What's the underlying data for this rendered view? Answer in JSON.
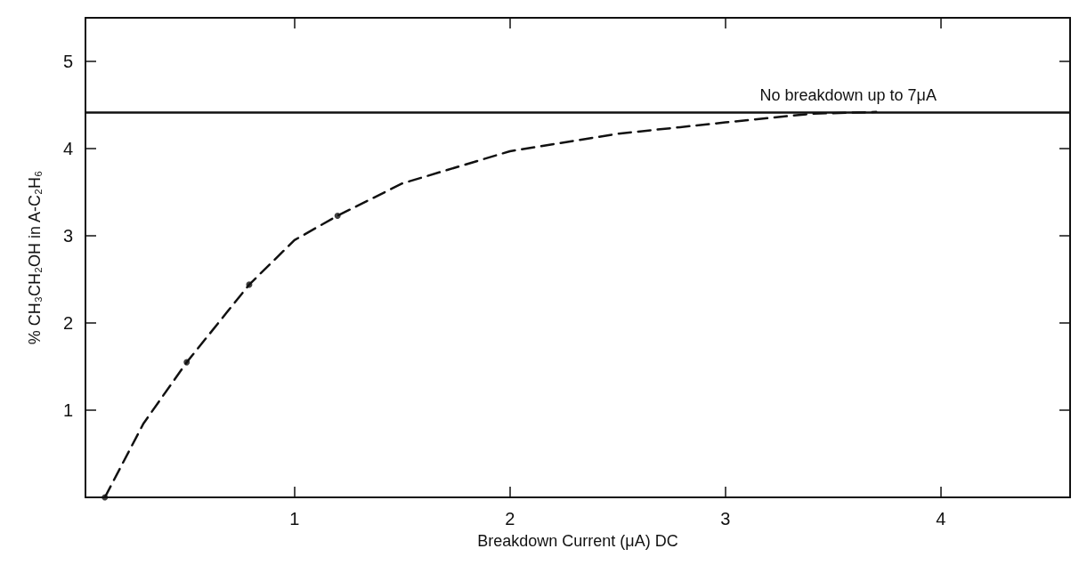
{
  "chart_data": {
    "type": "line",
    "xlabel": "Breakdown Current (μA) DC",
    "ylabel": "% CH₃CH₂OH in A-C₂H₆",
    "xlim": [
      0.03,
      4.6
    ],
    "ylim": [
      0,
      5.5
    ],
    "xticks": [
      1,
      2,
      3,
      4
    ],
    "yticks": [
      1,
      2,
      3,
      4,
      5
    ],
    "series": [
      {
        "type": "line",
        "color": "#111111",
        "line_style": "dashed",
        "marker": "none",
        "x": [
          0.12,
          0.3,
          0.5,
          0.79,
          1.0,
          1.2,
          1.5,
          2.0,
          2.5,
          3.0,
          3.4,
          3.7
        ],
        "values": [
          0,
          0.85,
          1.55,
          2.44,
          2.95,
          3.23,
          3.6,
          3.97,
          4.17,
          4.3,
          4.4,
          4.42
        ]
      },
      {
        "type": "scatter",
        "color": "#111111",
        "marker": "circle",
        "x": [
          0.12,
          0.5,
          0.79,
          1.2
        ],
        "values": [
          0,
          1.55,
          2.44,
          3.23
        ]
      }
    ],
    "ref_lines": [
      {
        "axis": "y",
        "value": 4.42,
        "label": "No breakdown up to 7μA",
        "color": "#111111",
        "line_style": "solid"
      }
    ]
  }
}
